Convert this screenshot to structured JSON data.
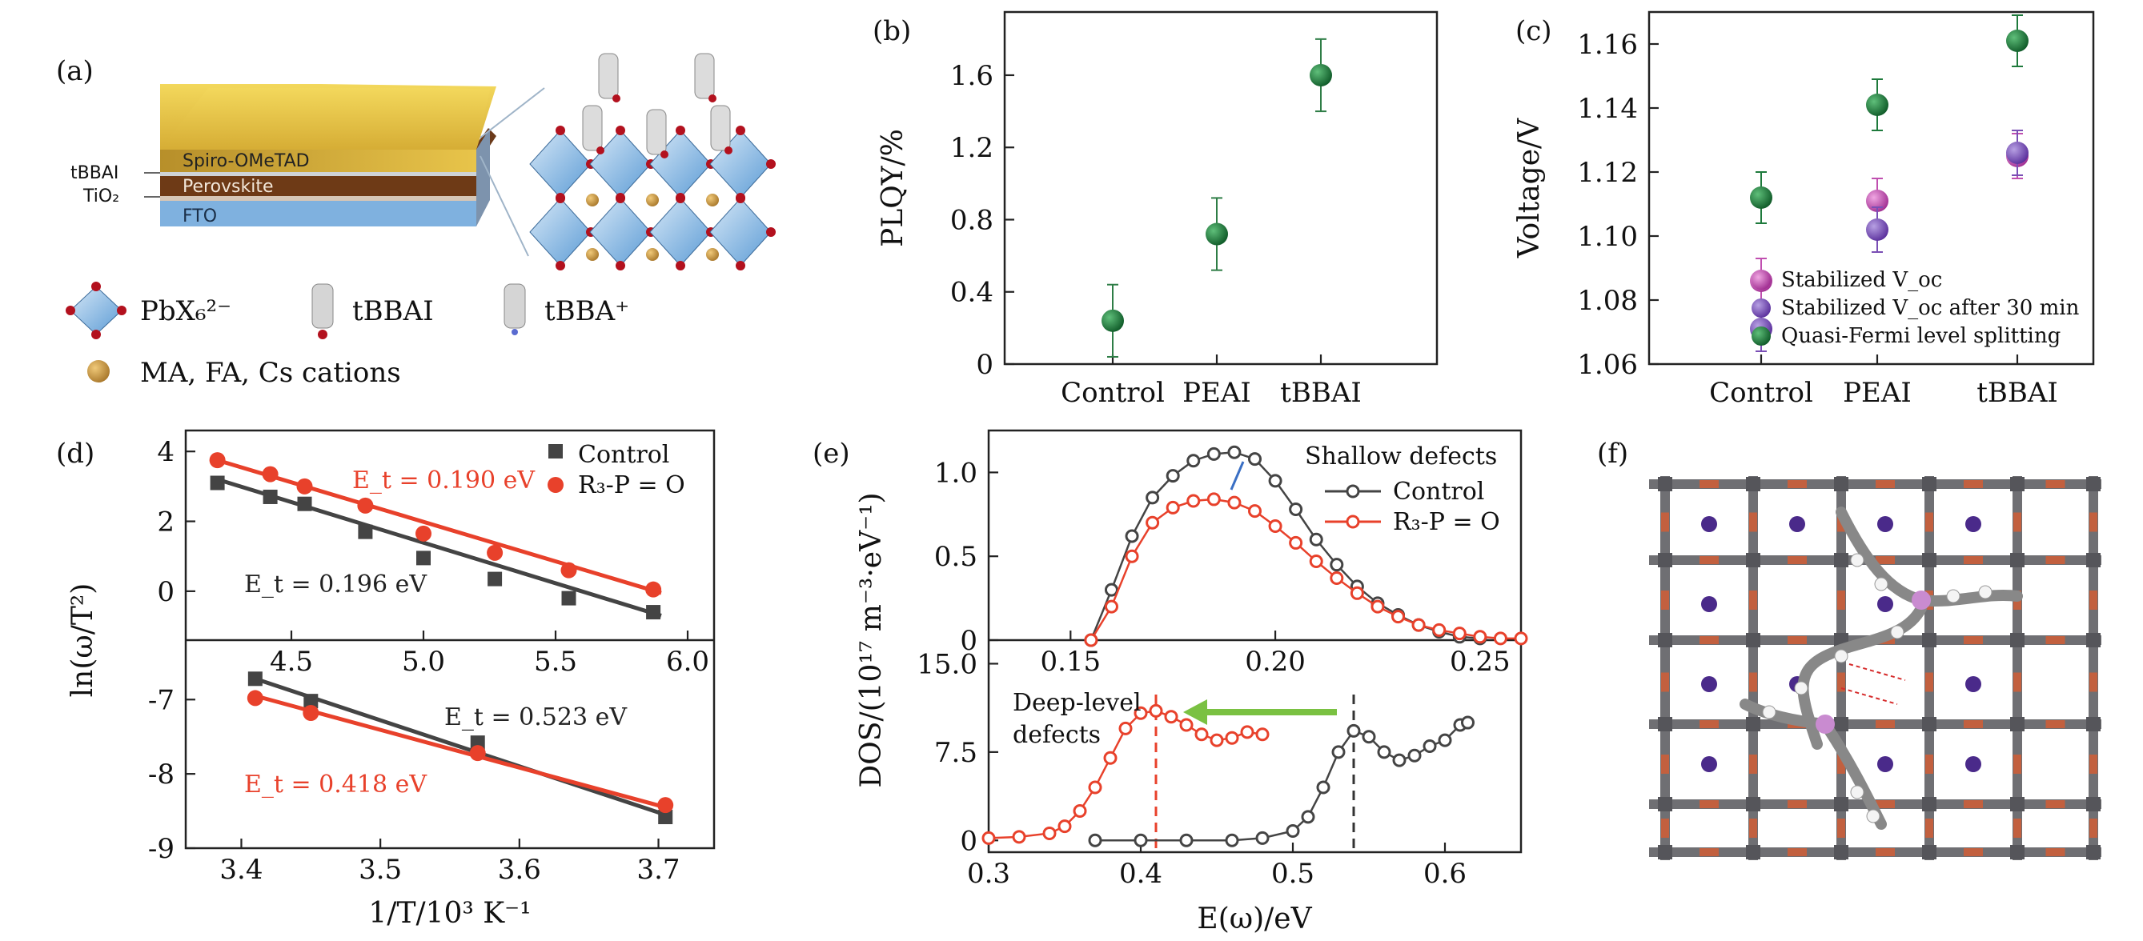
{
  "panels": {
    "a": {
      "label": "(a)",
      "layers": [
        "Spiro-OMeTAD",
        "Perovskite",
        "FTO"
      ],
      "side_labels": [
        "tBBAI",
        "TiO₂"
      ],
      "legend": [
        "PbX₆²⁻",
        "tBBAI",
        "tBBA⁺",
        "MA, FA, Cs cations"
      ]
    },
    "f": {
      "label": "(f)"
    }
  },
  "chart_data": [
    {
      "panel": "(b)",
      "type": "scatter",
      "categories": [
        "Control",
        "PEAI",
        "tBBAI"
      ],
      "values": [
        0.24,
        0.72,
        1.6
      ],
      "errors": [
        0.2,
        0.2,
        0.2
      ],
      "ylabel": "PLQY/%",
      "ylim": [
        0,
        1.95
      ],
      "yticks": [
        "0",
        "0.4",
        "0.8",
        "1.2",
        "1.6"
      ],
      "color": "#1e7a3c"
    },
    {
      "panel": "(c)",
      "type": "scatter",
      "categories": [
        "Control",
        "PEAI",
        "tBBAI"
      ],
      "ylabel": "Voltage/V",
      "ylim": [
        1.06,
        1.17
      ],
      "yticks": [
        "1.06",
        "1.08",
        "1.10",
        "1.12",
        "1.14",
        "1.16"
      ],
      "series": [
        {
          "name": "Stabilized V_oc",
          "values": [
            1.086,
            1.111,
            1.125
          ],
          "errors": [
            0.007,
            0.007,
            0.007
          ],
          "color": "#c04fb0"
        },
        {
          "name": "Stabilized V_oc after 30 min",
          "values": [
            1.071,
            1.102,
            1.126
          ],
          "errors": [
            0.007,
            0.007,
            0.007
          ],
          "color": "#7a4fb5"
        },
        {
          "name": "Quasi-Fermi level splitting",
          "values": [
            1.112,
            1.141,
            1.161
          ],
          "errors": [
            0.008,
            0.008,
            0.008
          ],
          "color": "#1e7a3c"
        }
      ]
    },
    {
      "panel": "(d)",
      "type": "scatter",
      "ylabel": "ln(ω/T²)",
      "top": {
        "xlim": [
          4.1,
          6.1
        ],
        "xticks": [
          "4.5",
          "5.0",
          "5.5",
          "6.0"
        ],
        "ylim": [
          -1.4,
          4.6
        ],
        "yticks": [
          "4",
          "2",
          "0"
        ],
        "series": [
          {
            "name": "Control",
            "color": "#444444",
            "marker": "square",
            "x": [
              4.22,
              4.42,
              4.55,
              4.78,
              5.0,
              5.27,
              5.55,
              5.87
            ],
            "y": [
              3.1,
              2.7,
              2.5,
              1.7,
              0.95,
              0.35,
              -0.2,
              -0.6
            ],
            "fit": [
              [
                4.22,
                3.2
              ],
              [
                5.9,
                -0.7
              ]
            ]
          },
          {
            "name": "R₃-P = O",
            "color": "#e8412b",
            "marker": "circle",
            "x": [
              4.22,
              4.42,
              4.55,
              4.78,
              5.0,
              5.27,
              5.55,
              5.87
            ],
            "y": [
              3.75,
              3.35,
              3.0,
              2.45,
              1.65,
              1.1,
              0.6,
              0.05
            ],
            "fit": [
              [
                4.22,
                3.75
              ],
              [
                5.9,
                -0.05
              ]
            ]
          }
        ],
        "annotations": [
          "E_t = 0.190 eV",
          "E_t = 0.196 eV"
        ]
      },
      "bottom": {
        "xlabel": "1/T/10³ K⁻¹",
        "xlim": [
          3.36,
          3.74
        ],
        "xticks": [
          "3.4",
          "3.5",
          "3.6",
          "3.7"
        ],
        "ylim": [
          -9.0,
          -6.2
        ],
        "yticks": [
          "-7",
          "-8",
          "-9"
        ],
        "series": [
          {
            "name": "Control",
            "color": "#444444",
            "marker": "square",
            "x": [
              3.41,
              3.45,
              3.57,
              3.705
            ],
            "y": [
              -6.72,
              -7.02,
              -7.58,
              -8.58
            ],
            "fit": [
              [
                3.41,
                -6.72
              ],
              [
                3.705,
                -8.55
              ]
            ]
          },
          {
            "name": "R₃-P = O",
            "color": "#e8412b",
            "marker": "circle",
            "x": [
              3.41,
              3.45,
              3.57,
              3.705
            ],
            "y": [
              -6.98,
              -7.18,
              -7.72,
              -8.42
            ],
            "fit": [
              [
                3.41,
                -6.95
              ],
              [
                3.705,
                -8.45
              ]
            ]
          }
        ],
        "annotations": [
          "E_t = 0.523 eV",
          "E_t = 0.418 eV"
        ]
      }
    },
    {
      "panel": "(e)",
      "type": "line",
      "ylabel": "DOS/(10¹⁷ m⁻³·eV⁻¹)",
      "top": {
        "xlim": [
          0.13,
          0.26
        ],
        "xticks": [
          "0.15",
          "0.20",
          "0.25"
        ],
        "ylim": [
          0,
          1.25
        ],
        "yticks": [
          "0",
          "0.5",
          "1.0"
        ],
        "legend_title": "Shallow defects",
        "series": [
          {
            "name": "Control",
            "color": "#444444",
            "x": [
              0.155,
              0.16,
              0.165,
              0.17,
              0.175,
              0.18,
              0.185,
              0.19,
              0.195,
              0.2,
              0.205,
              0.21,
              0.215,
              0.22,
              0.225,
              0.23,
              0.235,
              0.24,
              0.245,
              0.25
            ],
            "y": [
              0,
              0.3,
              0.62,
              0.85,
              0.98,
              1.07,
              1.11,
              1.12,
              1.08,
              0.95,
              0.78,
              0.6,
              0.45,
              0.32,
              0.22,
              0.15,
              0.09,
              0.05,
              0.02,
              0.01
            ]
          },
          {
            "name": "R₃-P = O",
            "color": "#e8412b",
            "x": [
              0.155,
              0.16,
              0.165,
              0.17,
              0.175,
              0.18,
              0.185,
              0.19,
              0.195,
              0.2,
              0.205,
              0.21,
              0.215,
              0.22,
              0.225,
              0.23,
              0.235,
              0.24,
              0.245,
              0.25,
              0.255,
              0.26
            ],
            "y": [
              0,
              0.2,
              0.5,
              0.7,
              0.79,
              0.83,
              0.84,
              0.82,
              0.77,
              0.68,
              0.58,
              0.47,
              0.37,
              0.28,
              0.2,
              0.14,
              0.09,
              0.06,
              0.04,
              0.02,
              0.01,
              0.01
            ]
          }
        ]
      },
      "bottom": {
        "xlabel": "E(ω)/eV",
        "xlim": [
          0.3,
          0.65
        ],
        "xticks": [
          "0.3",
          "0.4",
          "0.5",
          "0.6"
        ],
        "ylim": [
          -1.0,
          17.0
        ],
        "yticks": [
          "0",
          "7.5",
          "15.0"
        ],
        "annotations": [
          "Deep-level",
          "defects"
        ],
        "series": [
          {
            "name": "Control",
            "color": "#444444",
            "x": [
              0.37,
              0.4,
              0.43,
              0.46,
              0.48,
              0.5,
              0.51,
              0.52,
              0.53,
              0.54,
              0.55,
              0.56,
              0.57,
              0.58,
              0.59,
              0.6,
              0.61,
              0.615
            ],
            "y": [
              0,
              0,
              0,
              0,
              0.2,
              0.8,
              2.0,
              4.5,
              7.5,
              9.3,
              8.8,
              7.5,
              6.8,
              7.2,
              8.0,
              8.5,
              9.8,
              10.0
            ]
          },
          {
            "name": "R₃-P = O",
            "color": "#e8412b",
            "x": [
              0.3,
              0.32,
              0.34,
              0.35,
              0.36,
              0.37,
              0.38,
              0.39,
              0.4,
              0.41,
              0.42,
              0.43,
              0.44,
              0.45,
              0.46,
              0.47,
              0.48
            ],
            "y": [
              0.2,
              0.3,
              0.6,
              1.2,
              2.5,
              4.5,
              7.0,
              9.5,
              10.8,
              11.0,
              10.5,
              9.8,
              9.0,
              8.5,
              8.7,
              9.2,
              9.0
            ]
          }
        ],
        "vlines": [
          {
            "x": 0.41,
            "color": "#e8412b"
          },
          {
            "x": 0.54,
            "color": "#333333"
          }
        ]
      }
    }
  ]
}
